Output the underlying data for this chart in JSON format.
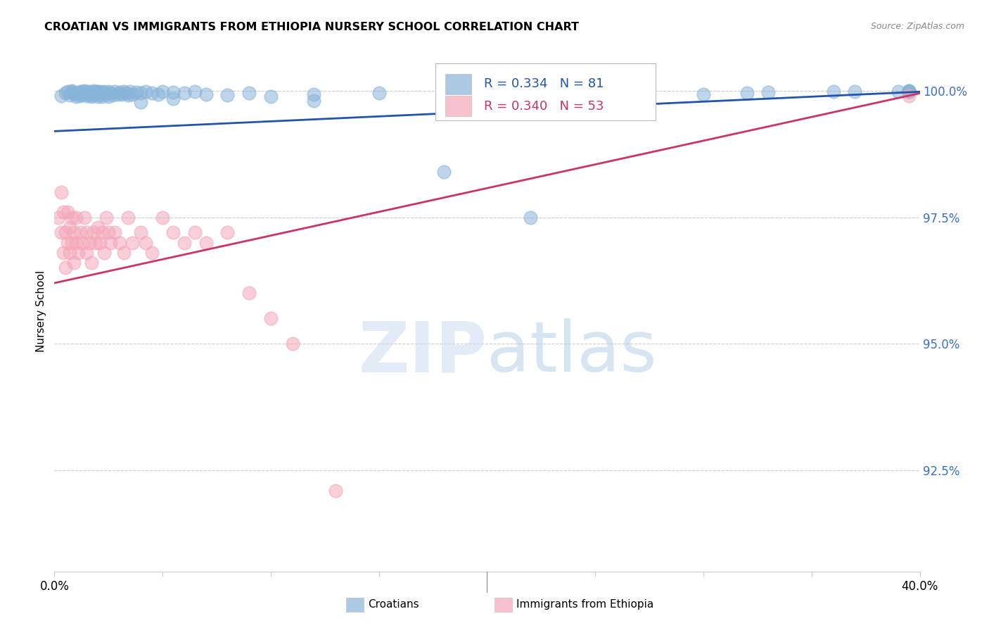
{
  "title": "CROATIAN VS IMMIGRANTS FROM ETHIOPIA NURSERY SCHOOL CORRELATION CHART",
  "source": "Source: ZipAtlas.com",
  "ylabel": "Nursery School",
  "ytick_labels": [
    "100.0%",
    "97.5%",
    "95.0%",
    "92.5%"
  ],
  "ytick_values": [
    1.0,
    0.975,
    0.95,
    0.925
  ],
  "xlim": [
    0.0,
    0.4
  ],
  "ylim": [
    0.905,
    1.008
  ],
  "blue_R": 0.334,
  "blue_N": 81,
  "pink_R": 0.34,
  "pink_N": 53,
  "blue_color": "#89B4D9",
  "pink_color": "#F4A7B9",
  "blue_line_color": "#2255AA",
  "pink_line_color": "#CC3366",
  "legend_label_blue": "Croatians",
  "legend_label_pink": "Immigrants from Ethiopia",
  "blue_line_x": [
    0.0,
    0.4
  ],
  "blue_line_y": [
    0.992,
    0.9998
  ],
  "pink_line_x": [
    0.0,
    0.4
  ],
  "pink_line_y": [
    0.962,
    0.9995
  ],
  "blue_x": [
    0.003,
    0.005,
    0.006,
    0.007,
    0.008,
    0.008,
    0.009,
    0.01,
    0.01,
    0.011,
    0.012,
    0.012,
    0.013,
    0.013,
    0.014,
    0.014,
    0.015,
    0.015,
    0.016,
    0.016,
    0.017,
    0.017,
    0.018,
    0.018,
    0.019,
    0.019,
    0.02,
    0.02,
    0.021,
    0.021,
    0.022,
    0.022,
    0.023,
    0.024,
    0.025,
    0.025,
    0.026,
    0.027,
    0.028,
    0.029,
    0.03,
    0.031,
    0.032,
    0.033,
    0.034,
    0.035,
    0.036,
    0.038,
    0.04,
    0.042,
    0.045,
    0.048,
    0.05,
    0.055,
    0.06,
    0.065,
    0.07,
    0.08,
    0.09,
    0.1,
    0.12,
    0.15,
    0.18,
    0.22,
    0.27,
    0.3,
    0.33,
    0.36,
    0.39,
    0.395,
    0.395,
    0.395,
    0.04,
    0.055,
    0.12,
    0.18,
    0.26,
    0.32,
    0.37,
    0.395,
    0.395
  ],
  "blue_y": [
    0.999,
    0.9995,
    0.9998,
    0.9992,
    0.9998,
    1.0,
    0.9995,
    0.9988,
    0.9993,
    0.9996,
    0.999,
    0.9998,
    0.9993,
    0.9999,
    0.9996,
    1.0,
    0.999,
    0.9998,
    0.9992,
    0.9999,
    0.9988,
    0.9997,
    0.9992,
    1.0,
    0.9995,
    0.9999,
    0.9988,
    0.9998,
    0.9993,
    0.9999,
    0.9988,
    0.9997,
    0.9998,
    0.9993,
    0.9988,
    0.9998,
    0.9995,
    0.9991,
    0.9998,
    0.9993,
    0.9997,
    0.9993,
    0.9998,
    0.9995,
    0.9991,
    0.9998,
    0.9993,
    0.9997,
    0.9995,
    0.9998,
    0.9996,
    0.9993,
    0.9998,
    0.9997,
    0.9996,
    0.9998,
    0.9993,
    0.9991,
    0.9995,
    0.9988,
    0.9993,
    0.9995,
    0.984,
    0.975,
    0.9985,
    0.9993,
    0.9997,
    0.9998,
    0.9998,
    0.9998,
    1.0,
    1.0,
    0.9978,
    0.9985,
    0.998,
    0.999,
    0.9992,
    0.9995,
    0.9998,
    0.9998,
    0.9998
  ],
  "pink_x": [
    0.002,
    0.003,
    0.003,
    0.004,
    0.004,
    0.005,
    0.005,
    0.006,
    0.006,
    0.007,
    0.007,
    0.008,
    0.008,
    0.009,
    0.009,
    0.01,
    0.01,
    0.011,
    0.012,
    0.013,
    0.014,
    0.015,
    0.015,
    0.016,
    0.017,
    0.018,
    0.019,
    0.02,
    0.021,
    0.022,
    0.023,
    0.024,
    0.025,
    0.026,
    0.028,
    0.03,
    0.032,
    0.034,
    0.036,
    0.04,
    0.042,
    0.045,
    0.05,
    0.055,
    0.06,
    0.065,
    0.07,
    0.08,
    0.09,
    0.1,
    0.11,
    0.13,
    0.395
  ],
  "pink_y": [
    0.975,
    0.98,
    0.972,
    0.976,
    0.968,
    0.965,
    0.972,
    0.97,
    0.976,
    0.973,
    0.968,
    0.975,
    0.97,
    0.972,
    0.966,
    0.97,
    0.975,
    0.968,
    0.972,
    0.97,
    0.975,
    0.968,
    0.972,
    0.97,
    0.966,
    0.972,
    0.97,
    0.973,
    0.97,
    0.972,
    0.968,
    0.975,
    0.972,
    0.97,
    0.972,
    0.97,
    0.968,
    0.975,
    0.97,
    0.972,
    0.97,
    0.968,
    0.975,
    0.972,
    0.97,
    0.972,
    0.97,
    0.972,
    0.96,
    0.955,
    0.95,
    0.921,
    0.999
  ]
}
